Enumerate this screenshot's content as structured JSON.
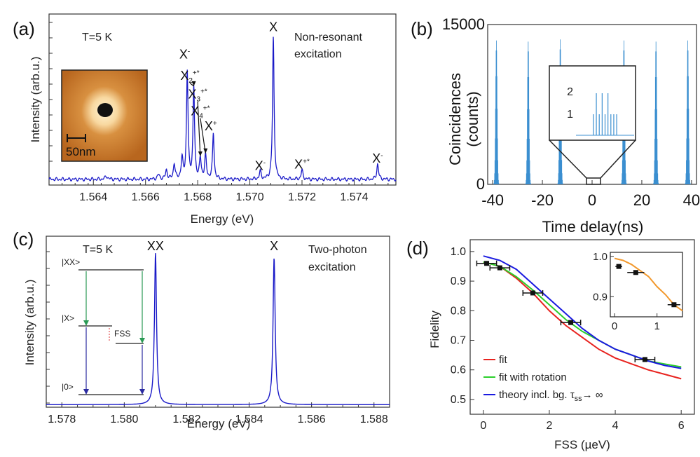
{
  "panel_labels": {
    "a": "(a)",
    "b": "(b)",
    "c": "(c)",
    "d": "(d)"
  },
  "colors": {
    "spectrum": "#1a1ac8",
    "coincidence": "#3b8fd0",
    "fit": "#e8231f",
    "fit_rotation": "#2bcf2b",
    "theory": "#1a1ae0",
    "inset_fit": "#f2992e",
    "arrow_green": "#2a9a55",
    "arrow_blue": "#2a2aa0",
    "fss_red": "#d33",
    "afm_bg": "#c0722e"
  },
  "chart_data": [
    {
      "id": "a",
      "type": "line",
      "xlabel": "Energy (eV)",
      "ylabel": "Intensity (arbu.)",
      "ylabel_text": "Intensity (arb.u.)",
      "xlim": [
        1.5623,
        1.5756
      ],
      "xticks": [
        1.564,
        1.566,
        1.568,
        1.57,
        1.572,
        1.574
      ],
      "xtick_labels": [
        "1.564",
        "1.566",
        "1.568",
        "1.570",
        "1.572",
        "1.574"
      ],
      "temperature": "T=5 K",
      "excitation": [
        "Non-resonant",
        "excitation"
      ],
      "inset_scale": "50nm",
      "peaks": [
        {
          "x": 1.5645,
          "h": 0.02,
          "w": 6e-05
        },
        {
          "x": 1.5665,
          "h": 0.03,
          "w": 5e-05
        },
        {
          "x": 1.5668,
          "h": 0.06,
          "w": 4e-05
        },
        {
          "x": 1.5671,
          "h": 0.1,
          "w": 4e-05
        },
        {
          "x": 1.5674,
          "h": 0.13,
          "w": 4e-05
        },
        {
          "x": 1.5676,
          "h": 0.7,
          "w": 3.5e-05
        },
        {
          "x": 1.56785,
          "h": 0.6,
          "w": 3.5e-05
        },
        {
          "x": 1.5681,
          "h": 0.13,
          "w": 4e-05
        },
        {
          "x": 1.5683,
          "h": 0.15,
          "w": 4e-05
        },
        {
          "x": 1.5686,
          "h": 0.3,
          "w": 3.5e-05
        },
        {
          "x": 1.5704,
          "h": 0.05,
          "w": 4e-05
        },
        {
          "x": 1.5709,
          "h": 0.93,
          "w": 3.5e-05
        },
        {
          "x": 1.572,
          "h": 0.06,
          "w": 4e-05
        },
        {
          "x": 1.5749,
          "h": 0.1,
          "w": 4e-05
        }
      ],
      "labels": [
        {
          "text": "X",
          "sup": "-",
          "x": 1.5675,
          "y": 0.8
        },
        {
          "text": "X",
          "sub": "2",
          "sup": "+*",
          "x": 1.5677,
          "y": 0.66
        },
        {
          "text": "X",
          "sub": "3",
          "sup": "+*",
          "x": 1.568,
          "y": 0.54
        },
        {
          "text": "X",
          "sub": "4",
          "sup": "+*",
          "x": 1.5681,
          "y": 0.43
        },
        {
          "text": "X",
          "sup": "+",
          "x": 1.5685,
          "y": 0.33
        },
        {
          "text": "X",
          "x": 1.5709,
          "y": 0.98
        },
        {
          "text": "X",
          "sup": "-",
          "x": 1.5704,
          "y": 0.07
        },
        {
          "text": "X",
          "sup": "+*",
          "x": 1.572,
          "y": 0.08
        },
        {
          "text": "X",
          "sup": "-",
          "x": 1.5749,
          "y": 0.12
        }
      ]
    },
    {
      "id": "b",
      "type": "bar",
      "xlabel": "Time delay(ns)",
      "ylabel_line1": "Coincidences",
      "ylabel_line2": "(counts)",
      "xlim": [
        -42,
        42
      ],
      "ylim": [
        0,
        15000
      ],
      "xticks": [
        -40,
        -20,
        0,
        20,
        40
      ],
      "xtick_labels": [
        "-40",
        "-20",
        "0",
        "20",
        "40"
      ],
      "yticks": [
        0,
        15000
      ],
      "ytick_labels": [
        "0",
        "15000"
      ],
      "pulse_positions": [
        -38.5,
        -25.7,
        -12.8,
        12.8,
        25.7,
        38.5
      ],
      "pulse_heights": [
        13500,
        13400,
        13600,
        13500,
        13400,
        13500
      ],
      "inset": {
        "yticks": [
          1,
          2
        ],
        "ytick_labels": [
          "1",
          "2"
        ],
        "bars": [
          [
            -1.2,
            1
          ],
          [
            -0.9,
            2
          ],
          [
            -0.6,
            1
          ],
          [
            -0.3,
            2
          ],
          [
            0,
            1
          ],
          [
            0.3,
            2
          ],
          [
            0.6,
            1
          ],
          [
            0.9,
            1
          ],
          [
            1.2,
            1
          ]
        ]
      }
    },
    {
      "id": "c",
      "type": "line",
      "xlabel": "Energy (eV)",
      "ylabel": "Intensity (arb.u.)",
      "xlim": [
        1.5775,
        1.5885
      ],
      "xticks": [
        1.578,
        1.58,
        1.582,
        1.584,
        1.586,
        1.588
      ],
      "xtick_labels": [
        "1.578",
        "1.580",
        "1.582",
        "1.584",
        "1.586",
        "1.588"
      ],
      "temperature": "T=5 K",
      "excitation": [
        "Two-photon",
        "excitation"
      ],
      "peaks": [
        {
          "x": 1.581,
          "h": 0.95,
          "w": 4e-05
        },
        {
          "x": 1.5848,
          "h": 0.92,
          "w": 4e-05
        }
      ],
      "peak_labels": [
        {
          "text": "XX",
          "x": 1.581
        },
        {
          "text": "X",
          "x": 1.5848
        }
      ],
      "levels": {
        "xx": "|XX>",
        "x": "|X>",
        "g": "|0>",
        "fss": "FSS"
      }
    },
    {
      "id": "d",
      "type": "line",
      "xlabel": "FSS (µeV)",
      "ylabel": "Fidelity",
      "xlim": [
        -0.4,
        6.4
      ],
      "ylim": [
        0.45,
        1.04
      ],
      "xticks": [
        0,
        2,
        4,
        6
      ],
      "xtick_labels": [
        "0",
        "2",
        "4",
        "6"
      ],
      "yticks": [
        0.5,
        0.6,
        0.7,
        0.8,
        0.9,
        1.0
      ],
      "ytick_labels": [
        "0.5",
        "0.6",
        "0.7",
        "0.8",
        "0.9",
        "1.0"
      ],
      "series": [
        {
          "name": "fit",
          "color": "#e8231f",
          "x": [
            0,
            0.5,
            1,
            1.5,
            2,
            2.5,
            3,
            3.5,
            4,
            4.5,
            5,
            5.5,
            6
          ],
          "y": [
            0.965,
            0.95,
            0.91,
            0.86,
            0.8,
            0.75,
            0.71,
            0.67,
            0.64,
            0.62,
            0.6,
            0.585,
            0.57
          ]
        },
        {
          "name": "fit with rotation",
          "color": "#2bcf2b",
          "x": [
            0,
            0.5,
            1,
            1.5,
            2,
            2.5,
            3,
            3.5,
            4,
            4.5,
            5,
            5.5,
            6
          ],
          "y": [
            0.965,
            0.95,
            0.915,
            0.87,
            0.82,
            0.77,
            0.73,
            0.7,
            0.67,
            0.65,
            0.63,
            0.62,
            0.61
          ]
        },
        {
          "name": "theory incl. bg. τss→ ∞",
          "color": "#1a1ae0",
          "x": [
            0,
            0.5,
            1,
            1.5,
            2,
            2.5,
            3,
            3.5,
            4,
            4.5,
            5,
            5.5,
            6
          ],
          "y": [
            0.985,
            0.97,
            0.94,
            0.89,
            0.84,
            0.79,
            0.74,
            0.7,
            0.67,
            0.65,
            0.63,
            0.615,
            0.605
          ]
        }
      ],
      "legend_labels": {
        "fit": "fit",
        "rotation": "fit with rotation",
        "theory_main": "theory incl. bg. τ",
        "theory_sub": "ss",
        "theory_tail": "→ ∞"
      },
      "points": [
        {
          "x": 0.1,
          "y": 0.96,
          "xerr": 0.3,
          "yerr": 0.01
        },
        {
          "x": 0.5,
          "y": 0.945,
          "xerr": 0.3,
          "yerr": 0.01
        },
        {
          "x": 1.5,
          "y": 0.86,
          "xerr": 0.3,
          "yerr": 0.01
        },
        {
          "x": 2.65,
          "y": 0.76,
          "xerr": 0.3,
          "yerr": 0.01
        },
        {
          "x": 4.9,
          "y": 0.635,
          "xerr": 0.3,
          "yerr": 0.01
        }
      ],
      "inset": {
        "xlim": [
          -0.1,
          1.6
        ],
        "ylim": [
          0.85,
          1.01
        ],
        "xticks": [
          0,
          1
        ],
        "xtick_labels": [
          "0",
          "1"
        ],
        "yticks": [
          0.9,
          1.0
        ],
        "ytick_labels": [
          "0.9",
          "1.0"
        ],
        "curve_x": [
          0,
          0.2,
          0.4,
          0.6,
          0.8,
          1.0,
          1.2,
          1.4,
          1.6
        ],
        "curve_y": [
          0.995,
          0.99,
          0.98,
          0.965,
          0.95,
          0.925,
          0.905,
          0.88,
          0.865
        ],
        "points": [
          {
            "x": 0.1,
            "y": 0.975,
            "xerr": 0.08
          },
          {
            "x": 0.5,
            "y": 0.96,
            "xerr": 0.2
          },
          {
            "x": 1.4,
            "y": 0.88,
            "xerr": 0.15
          }
        ]
      }
    }
  ]
}
